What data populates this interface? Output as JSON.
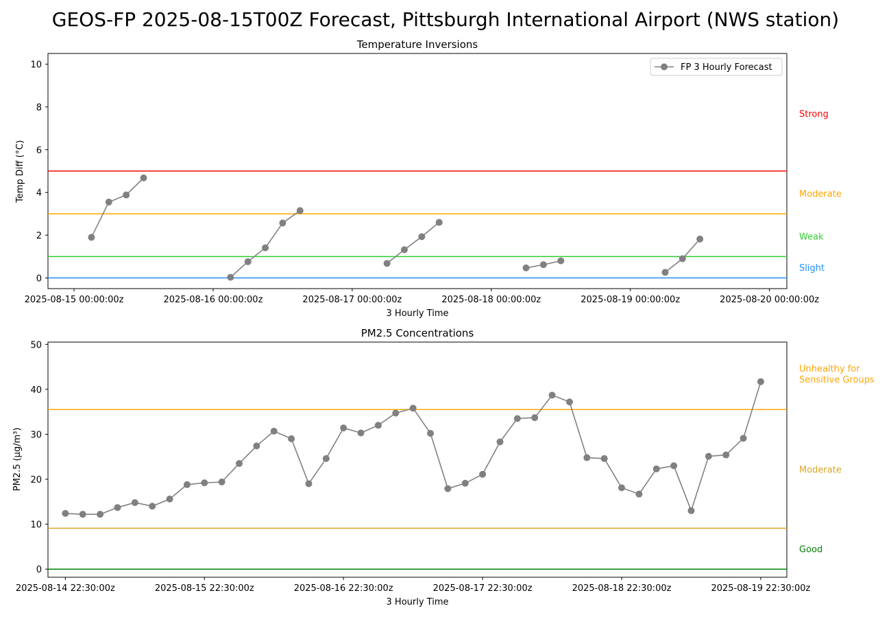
{
  "title": "GEOS-FP 2025-08-15T00Z Forecast, Pittsburgh International Airport (NWS station)",
  "colors": {
    "series": "#808080",
    "strong": "#ff0000",
    "moderate_inv": "#ffa500",
    "weak": "#32cd32",
    "slight": "#1e90ff",
    "usg": "#ffa500",
    "moderate_pm": "#daa520",
    "good": "#008000"
  },
  "chart_data": [
    {
      "type": "line",
      "title": "Temperature Inversions",
      "xlabel": "3 Hourly Time",
      "ylabel": "Temp Diff (°C)",
      "ylim": [
        -0.5,
        10.5
      ],
      "y_ticks": [
        "0",
        "2",
        "4",
        "6",
        "8",
        "10"
      ],
      "x_tick_labels": [
        "2025-08-15 00:00:00z",
        "2025-08-16 00:00:00z",
        "2025-08-17 00:00:00z",
        "2025-08-18 00:00:00z",
        "2025-08-19 00:00:00z",
        "2025-08-20 00:00:00z"
      ],
      "x_unit": "hours since 2025-08-14 22:30z",
      "xlim": [
        -3.0,
        124.5
      ],
      "legend": "top-right",
      "grid": false,
      "series": [
        {
          "name": "FP 3 Hourly Forecast",
          "segments": [
            [
              [
                4.5,
                1.9
              ],
              [
                7.5,
                3.55
              ],
              [
                10.5,
                3.88
              ],
              [
                13.5,
                4.68
              ]
            ],
            [
              [
                28.5,
                0.03
              ],
              [
                31.5,
                0.76
              ],
              [
                34.5,
                1.41
              ],
              [
                37.5,
                2.57
              ],
              [
                40.5,
                3.15
              ]
            ],
            [
              [
                55.5,
                0.68
              ],
              [
                58.5,
                1.32
              ],
              [
                61.5,
                1.93
              ],
              [
                64.5,
                2.6
              ]
            ],
            [
              [
                79.5,
                0.47
              ],
              [
                82.5,
                0.62
              ],
              [
                85.5,
                0.8
              ]
            ],
            [
              [
                103.5,
                0.26
              ],
              [
                106.5,
                0.9
              ],
              [
                109.5,
                1.82
              ]
            ]
          ]
        }
      ],
      "thresholds": [
        {
          "value": 5,
          "label": "Strong",
          "color_key": "strong",
          "label_y": 7.7
        },
        {
          "value": 3,
          "label": "Moderate",
          "color_key": "moderate_inv",
          "label_y": 3.95
        },
        {
          "value": 1,
          "label": "Weak",
          "color_key": "weak",
          "label_y": 1.95
        },
        {
          "value": 0,
          "label": "Slight",
          "color_key": "slight",
          "label_y": 0.5
        }
      ]
    },
    {
      "type": "line",
      "title": "PM2.5 Concentrations",
      "xlabel": "3 Hourly Time",
      "ylabel": "PM2.5 (μg/m³)",
      "ylim": [
        -1.8,
        50.5
      ],
      "y_ticks": [
        "0",
        "10",
        "20",
        "30",
        "40",
        "50"
      ],
      "x_tick_labels": [
        "2025-08-14 22:30:00z",
        "2025-08-15 22:30:00z",
        "2025-08-16 22:30:00z",
        "2025-08-17 22:30:00z",
        "2025-08-18 22:30:00z",
        "2025-08-19 22:30:00z"
      ],
      "x_unit": "hours since 2025-08-14 22:30z",
      "xlim": [
        -3.0,
        124.5
      ],
      "grid": false,
      "series": [
        {
          "name": "FP 3 Hourly Forecast",
          "x": [
            0,
            3,
            6,
            9,
            12,
            15,
            18,
            21,
            24,
            27,
            30,
            33,
            36,
            39,
            42,
            45,
            48,
            51,
            54,
            57,
            60,
            63,
            66,
            69,
            72,
            75,
            78,
            81,
            84,
            87,
            90,
            93,
            96,
            99,
            102,
            105,
            108,
            111,
            114,
            117,
            120
          ],
          "values": [
            12.4,
            12.2,
            12.2,
            13.7,
            14.8,
            14.0,
            15.6,
            18.8,
            19.2,
            19.4,
            23.5,
            27.4,
            30.7,
            29.0,
            19.0,
            24.6,
            31.4,
            30.3,
            32.0,
            34.7,
            35.8,
            30.2,
            17.9,
            19.1,
            21.1,
            28.3,
            33.5,
            33.7,
            38.7,
            37.2,
            24.8,
            24.6,
            18.1,
            16.7,
            22.3,
            23.0,
            13.0,
            25.1,
            25.4,
            29.1,
            41.7
          ]
        }
      ],
      "thresholds": [
        {
          "value": 35.5,
          "label": "Unhealthy for Sensitive Groups",
          "label_lines": [
            "Unhealthy for",
            "Sensitive Groups"
          ],
          "color_key": "usg",
          "label_y": 43.5
        },
        {
          "value": 9.1,
          "label": "Moderate",
          "color_key": "moderate_pm",
          "label_y": 22.2
        },
        {
          "value": 0,
          "label": "Good",
          "color_key": "good",
          "label_y": 4.5
        }
      ]
    }
  ]
}
